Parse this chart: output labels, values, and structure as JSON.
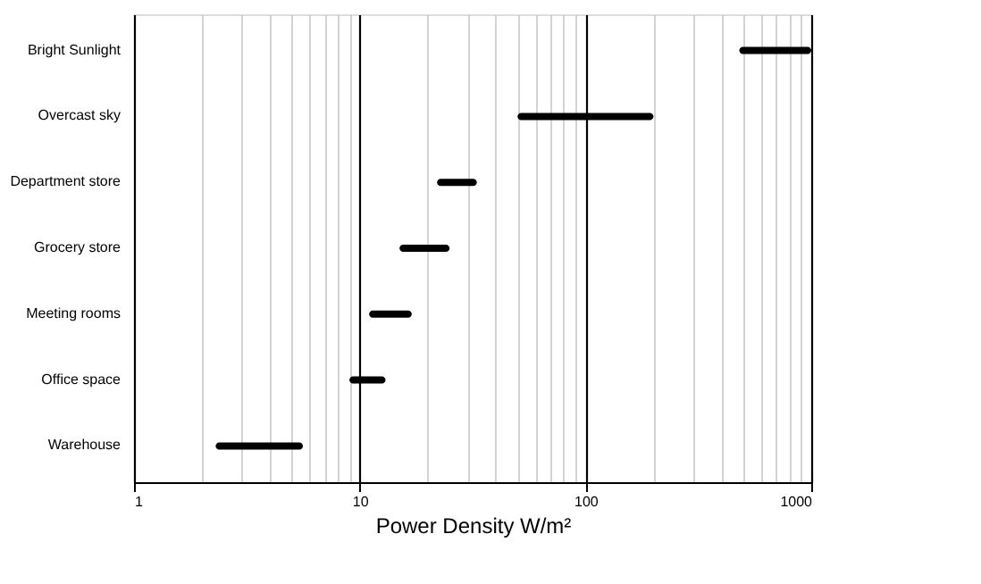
{
  "chart_data": {
    "type": "bar",
    "orientation": "horizontal",
    "log": "x",
    "grid": "x",
    "xlabel": "Power Density W/m²",
    "categories": [
      "Bright Sunlight",
      "Overcast sky",
      "Department store",
      "Grocery store",
      "Meeting rooms",
      "Office space",
      "Warehouse"
    ],
    "base": [
      480,
      50,
      22,
      15,
      11,
      9,
      2.3
    ],
    "values": [
      520,
      150,
      11,
      10,
      6,
      4,
      3.3
    ],
    "color": "#000000",
    "xlim": [
      1,
      1000
    ],
    "xticks": [
      1,
      {
        "value": 2,
        "label": null
      },
      {
        "value": 3,
        "label": null
      },
      {
        "value": 4,
        "label": null
      },
      {
        "value": 5,
        "label": null
      },
      {
        "value": 6,
        "label": null
      },
      {
        "value": 7,
        "label": null
      },
      {
        "value": 8,
        "label": null
      },
      {
        "value": 9,
        "label": null
      },
      10,
      {
        "value": 20,
        "label": null
      },
      {
        "value": 30,
        "label": null
      },
      {
        "value": 40,
        "label": null
      },
      {
        "value": 50,
        "label": null
      },
      {
        "value": 60,
        "label": null
      },
      {
        "value": 70,
        "label": null
      },
      {
        "value": 80,
        "label": null
      },
      {
        "value": 90,
        "label": null
      },
      100,
      {
        "value": 200,
        "label": null
      },
      {
        "value": 300,
        "label": null
      },
      {
        "value": 400,
        "label": null
      },
      {
        "value": 500,
        "label": null
      },
      {
        "value": 600,
        "label": null
      },
      {
        "value": 700,
        "label": null
      },
      {
        "value": 800,
        "label": null
      },
      {
        "value": 900,
        "label": null
      },
      1000
    ]
  }
}
